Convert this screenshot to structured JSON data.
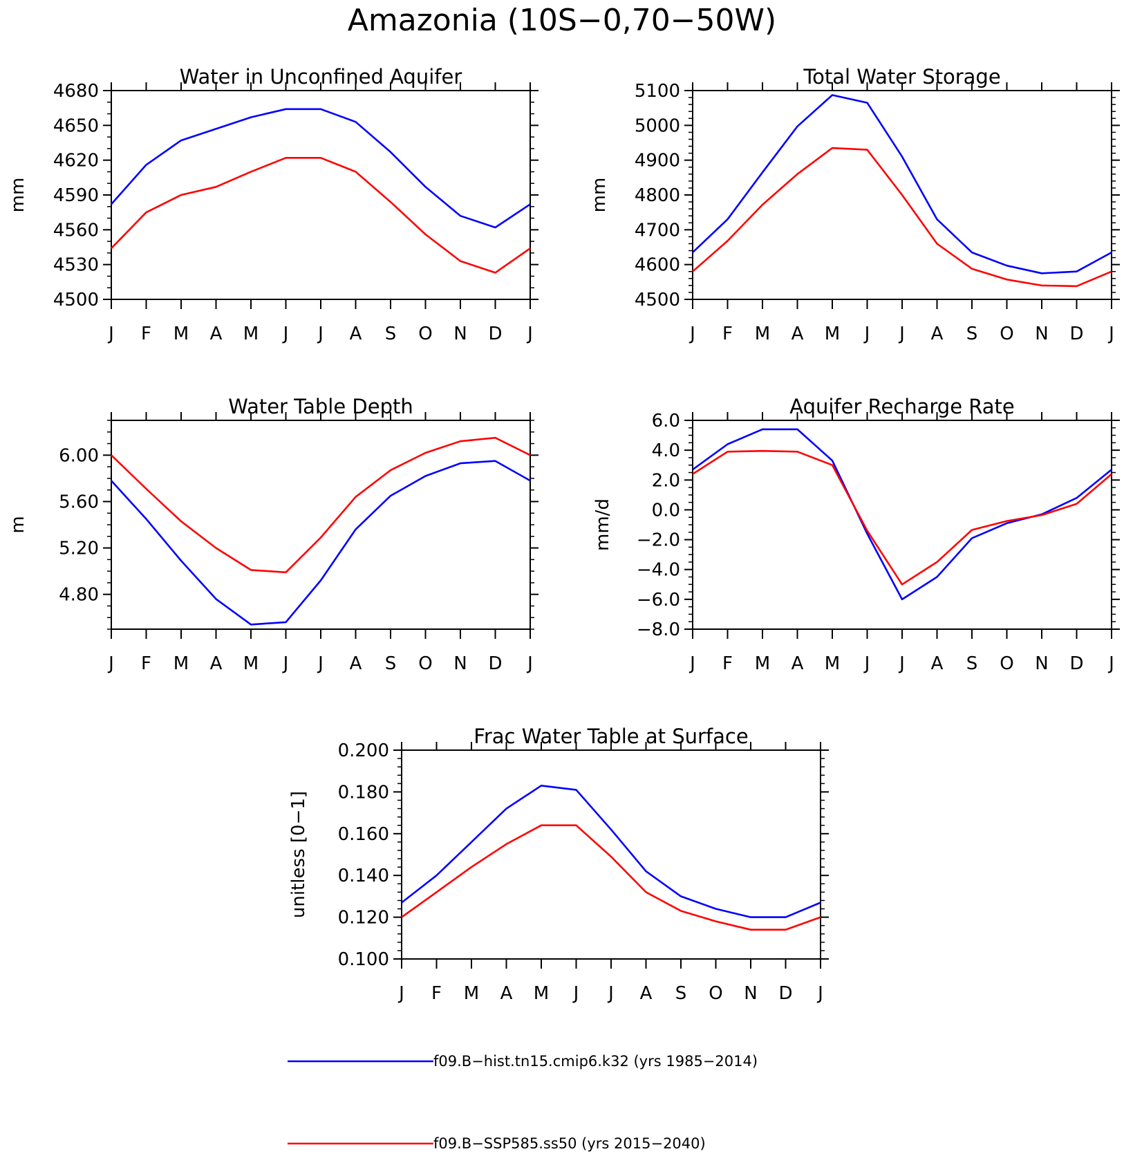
{
  "figure": {
    "title": "Amazonia (10S−0,70−50W)"
  },
  "colors": {
    "hist": "#0000ff",
    "ssp": "#ff0000",
    "axis": "#000000"
  },
  "legend": [
    {
      "label": "f09.B−hist.tn15.cmip6.k32 (yrs 1985−2014)",
      "color": "#0000ff"
    },
    {
      "label": "f09.B−SSP585.ss50 (yrs 2015−2040)",
      "color": "#ff0000"
    }
  ],
  "chart_data": [
    {
      "type": "line",
      "title": "Water in Unconfined Aquifer",
      "ylabel": "mm",
      "xlabel": "",
      "categories": [
        "J",
        "F",
        "M",
        "A",
        "M",
        "J",
        "J",
        "A",
        "S",
        "O",
        "N",
        "D",
        "J"
      ],
      "ylim": [
        4500,
        4680
      ],
      "yticks": [
        4500,
        4530,
        4560,
        4590,
        4620,
        4650,
        4680
      ],
      "ytick_labels": [
        "4500",
        "4530",
        "4560",
        "4590",
        "4620",
        "4650",
        "4680"
      ],
      "yminor": 10,
      "grid": false,
      "series": [
        {
          "name": "f09.B−hist.tn15.cmip6.k32 (yrs 1985−2014)",
          "color": "#0000ff",
          "values": [
            4582,
            4616,
            4637,
            4647,
            4657,
            4664,
            4664,
            4653,
            4627,
            4597,
            4572,
            4562,
            4582
          ]
        },
        {
          "name": "f09.B−SSP585.ss50 (yrs 2015−2040)",
          "color": "#ff0000",
          "values": [
            4544,
            4575,
            4590,
            4597,
            4610,
            4622,
            4622,
            4610,
            4584,
            4556,
            4533,
            4523,
            4544
          ]
        }
      ]
    },
    {
      "type": "line",
      "title": "Total Water Storage",
      "ylabel": "mm",
      "xlabel": "",
      "categories": [
        "J",
        "F",
        "M",
        "A",
        "M",
        "J",
        "J",
        "A",
        "S",
        "O",
        "N",
        "D",
        "J"
      ],
      "ylim": [
        4500,
        5100
      ],
      "yticks": [
        4500,
        4600,
        4700,
        4800,
        4900,
        5000,
        5100
      ],
      "ytick_labels": [
        "4500",
        "4600",
        "4700",
        "4800",
        "4900",
        "5000",
        "5100"
      ],
      "yminor": 20,
      "grid": false,
      "series": [
        {
          "name": "f09.B−hist.tn15.cmip6.k32 (yrs 1985−2014)",
          "color": "#0000ff",
          "values": [
            4635,
            4730,
            4865,
            4997,
            5087,
            5065,
            4910,
            4730,
            4635,
            4597,
            4575,
            4580,
            4635
          ]
        },
        {
          "name": "f09.B−SSP585.ss50 (yrs 2015−2040)",
          "color": "#ff0000",
          "values": [
            4580,
            4668,
            4772,
            4860,
            4935,
            4930,
            4800,
            4660,
            4588,
            4557,
            4540,
            4538,
            4580
          ]
        }
      ]
    },
    {
      "type": "line",
      "title": "Water Table Depth",
      "ylabel": "m",
      "xlabel": "",
      "categories": [
        "J",
        "F",
        "M",
        "A",
        "M",
        "J",
        "J",
        "A",
        "S",
        "O",
        "N",
        "D",
        "J"
      ],
      "ylim": [
        4.5,
        6.3
      ],
      "yticks": [
        4.8,
        5.2,
        5.6,
        6.0
      ],
      "ytick_labels": [
        "4.80",
        "5.20",
        "5.60",
        "6.00"
      ],
      "yminor": 0.1,
      "grid": false,
      "series": [
        {
          "name": "f09.B−hist.tn15.cmip6.k32 (yrs 1985−2014)",
          "color": "#0000ff",
          "values": [
            5.78,
            5.45,
            5.09,
            4.76,
            4.54,
            4.56,
            4.92,
            5.36,
            5.65,
            5.82,
            5.93,
            5.95,
            5.78
          ]
        },
        {
          "name": "f09.B−SSP585.ss50 (yrs 2015−2040)",
          "color": "#ff0000",
          "values": [
            6.0,
            5.71,
            5.43,
            5.2,
            5.01,
            4.99,
            5.29,
            5.64,
            5.87,
            6.02,
            6.12,
            6.15,
            6.0
          ]
        }
      ]
    },
    {
      "type": "line",
      "title": "Aquifer Recharge Rate",
      "ylabel": "mm/d",
      "xlabel": "",
      "categories": [
        "J",
        "F",
        "M",
        "A",
        "M",
        "J",
        "J",
        "A",
        "S",
        "O",
        "N",
        "D",
        "J"
      ],
      "ylim": [
        -8.0,
        6.0
      ],
      "yticks": [
        -8,
        -6,
        -4,
        -2,
        0,
        2,
        4,
        6
      ],
      "ytick_labels": [
        "−8.0",
        "−6.0",
        "−4.0",
        "−2.0",
        "0.0",
        "2.0",
        "4.0",
        "6.0"
      ],
      "yminor": 0.5,
      "grid": false,
      "series": [
        {
          "name": "f09.B−hist.tn15.cmip6.k32 (yrs 1985−2014)",
          "color": "#0000ff",
          "values": [
            2.7,
            4.4,
            5.4,
            5.4,
            3.3,
            -1.6,
            -6.0,
            -4.5,
            -1.9,
            -0.9,
            -0.3,
            0.8,
            2.7
          ]
        },
        {
          "name": "f09.B−SSP585.ss50 (yrs 2015−2040)",
          "color": "#ff0000",
          "values": [
            2.4,
            3.9,
            3.95,
            3.9,
            3.0,
            -1.4,
            -5.0,
            -3.5,
            -1.35,
            -0.75,
            -0.35,
            0.4,
            2.4
          ]
        }
      ]
    },
    {
      "type": "line",
      "title": "Frac Water Table at Surface",
      "ylabel": "unitless [0−1]",
      "xlabel": "",
      "categories": [
        "J",
        "F",
        "M",
        "A",
        "M",
        "J",
        "J",
        "A",
        "S",
        "O",
        "N",
        "D",
        "J"
      ],
      "ylim": [
        0.1,
        0.2
      ],
      "yticks": [
        0.1,
        0.12,
        0.14,
        0.16,
        0.18,
        0.2
      ],
      "ytick_labels": [
        "0.100",
        "0.120",
        "0.140",
        "0.160",
        "0.180",
        "0.200"
      ],
      "yminor": 0.004,
      "grid": false,
      "series": [
        {
          "name": "f09.B−hist.tn15.cmip6.k32 (yrs 1985−2014)",
          "color": "#0000ff",
          "values": [
            0.127,
            0.14,
            0.156,
            0.172,
            0.183,
            0.181,
            0.162,
            0.142,
            0.13,
            0.124,
            0.12,
            0.12,
            0.127
          ]
        },
        {
          "name": "f09.B−SSP585.ss50 (yrs 2015−2040)",
          "color": "#ff0000",
          "values": [
            0.12,
            0.132,
            0.144,
            0.155,
            0.164,
            0.164,
            0.149,
            0.132,
            0.123,
            0.118,
            0.114,
            0.114,
            0.12
          ]
        }
      ]
    }
  ]
}
